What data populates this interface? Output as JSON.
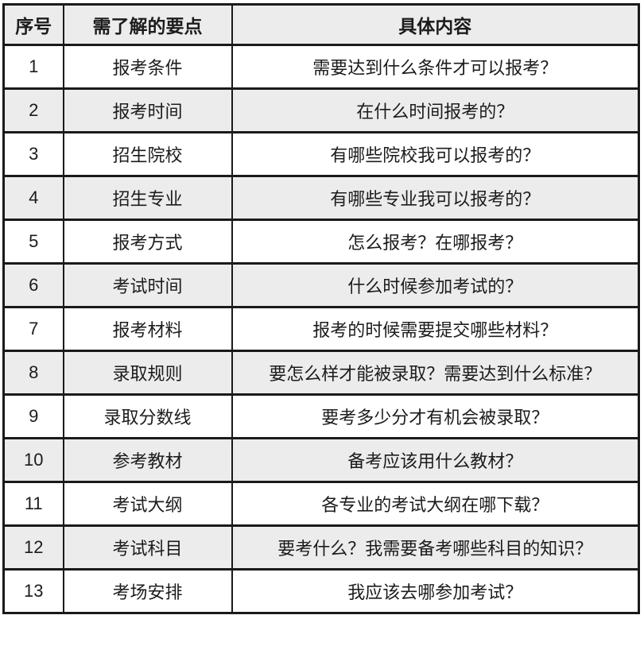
{
  "table": {
    "colors": {
      "header_bg": "#ececec",
      "row_alt_bg": "#ececec",
      "row_bg": "#ffffff",
      "border": "#1a1a1a",
      "text": "#1c1c1c"
    },
    "headers": {
      "num": "序号",
      "point": "需了解的要点",
      "content": "具体内容"
    },
    "rows": [
      {
        "num": "1",
        "point": "报考条件",
        "content": "需要达到什么条件才可以报考？"
      },
      {
        "num": "2",
        "point": "报考时间",
        "content": "在什么时间报考的？"
      },
      {
        "num": "3",
        "point": "招生院校",
        "content": "有哪些院校我可以报考的？"
      },
      {
        "num": "4",
        "point": "招生专业",
        "content": "有哪些专业我可以报考的？"
      },
      {
        "num": "5",
        "point": "报考方式",
        "content": "怎么报考？在哪报考？"
      },
      {
        "num": "6",
        "point": "考试时间",
        "content": "什么时候参加考试的？"
      },
      {
        "num": "7",
        "point": "报考材料",
        "content": "报考的时候需要提交哪些材料？"
      },
      {
        "num": "8",
        "point": "录取规则",
        "content": "要怎么样才能被录取？需要达到什么标准？"
      },
      {
        "num": "9",
        "point": "录取分数线",
        "content": "要考多少分才有机会被录取？"
      },
      {
        "num": "10",
        "point": "参考教材",
        "content": "备考应该用什么教材？"
      },
      {
        "num": "11",
        "point": "考试大纲",
        "content": "各专业的考试大纲在哪下载？"
      },
      {
        "num": "12",
        "point": "考试科目",
        "content": "要考什么？我需要备考哪些科目的知识？"
      },
      {
        "num": "13",
        "point": "考场安排",
        "content": "我应该去哪参加考试？"
      }
    ]
  }
}
